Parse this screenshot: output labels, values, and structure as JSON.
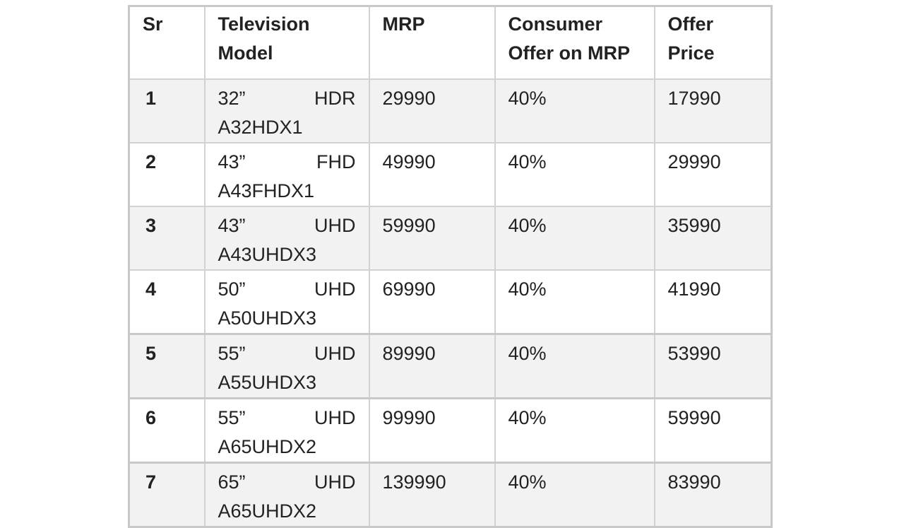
{
  "table": {
    "headers": {
      "sr": "Sr",
      "model_line1": "Television",
      "model_line2": "Model",
      "mrp": "MRP",
      "offer_line1": "Consumer",
      "offer_line2": "Offer on MRP",
      "price_line1": "Offer",
      "price_line2": "Price"
    },
    "rows": [
      {
        "sr": "1",
        "size": "32”",
        "type": "HDR",
        "model": "A32HDX1",
        "mrp": "29990",
        "offer": "40%",
        "price": "17990"
      },
      {
        "sr": "2",
        "size": "43”",
        "type": "FHD",
        "model": "A43FHDX1",
        "mrp": "49990",
        "offer": "40%",
        "price": "29990"
      },
      {
        "sr": "3",
        "size": "43”",
        "type": "UHD",
        "model": "A43UHDX3",
        "mrp": "59990",
        "offer": "40%",
        "price": "35990"
      },
      {
        "sr": "4",
        "size": "50”",
        "type": "UHD",
        "model": "A50UHDX3",
        "mrp": "69990",
        "offer": "40%",
        "price": "41990"
      },
      {
        "sr": "5",
        "size": "55”",
        "type": "UHD",
        "model": "A55UHDX3",
        "mrp": "89990",
        "offer": "40%",
        "price": "53990"
      },
      {
        "sr": "6",
        "size": "55”",
        "type": "UHD",
        "model": "A65UHDX2",
        "mrp": "99990",
        "offer": "40%",
        "price": "59990"
      },
      {
        "sr": "7",
        "size": "65”",
        "type": "UHD",
        "model": "A65UHDX2",
        "mrp": "139990",
        "offer": "40%",
        "price": "83990"
      }
    ]
  }
}
